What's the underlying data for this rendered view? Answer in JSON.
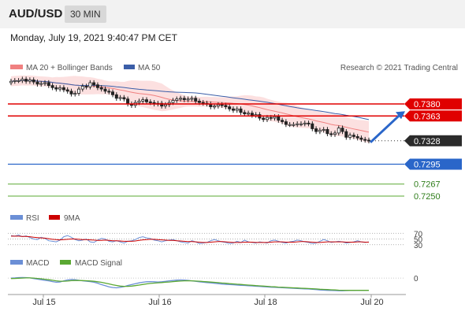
{
  "header": {
    "symbol": "AUD/USD",
    "timeframe": "30 MIN",
    "datetime": "Monday, July 19, 2021 9:40:47 PM CET"
  },
  "colors": {
    "ma20": "#f08080",
    "ma50": "#3b5ea8",
    "resistance": "#e00000",
    "support_1": "#2a66c9",
    "support_23": "#5aa832",
    "rsi": "#6b8fd6",
    "rsi_ma": "#cc0000",
    "macd": "#6b8fd6",
    "macd_signal": "#5aa832",
    "candle_up": "#ffffff",
    "candle_down": "#222222"
  },
  "chart_data": [
    {
      "type": "candlestick",
      "title": "Price",
      "legend": [
        {
          "label": "MA 20 + Bollinger Bands",
          "color": "#f08080"
        },
        {
          "label": "MA 50",
          "color": "#3b5ea8"
        }
      ],
      "credit": "Research © 2021 Trading Central",
      "x_labels": [
        "Jul 15",
        "Jul 16",
        "Jul 18",
        "Jul 20"
      ],
      "ylim": [
        0.724,
        0.742
      ],
      "close": [
        0.7412,
        0.7413,
        0.7413,
        0.7415,
        0.7412,
        0.7414,
        0.7411,
        0.7408,
        0.7409,
        0.741,
        0.7406,
        0.7403,
        0.7401,
        0.7403,
        0.74,
        0.7398,
        0.7394,
        0.7395,
        0.7401,
        0.7405,
        0.7404,
        0.741,
        0.7407,
        0.7403,
        0.7401,
        0.7398,
        0.7397,
        0.7393,
        0.7388,
        0.7389,
        0.7387,
        0.738,
        0.7378,
        0.7382,
        0.7384,
        0.7386,
        0.7383,
        0.7382,
        0.738,
        0.7381,
        0.7377,
        0.7379,
        0.7382,
        0.7385,
        0.7387,
        0.7388,
        0.7386,
        0.7387,
        0.7388,
        0.7384,
        0.7382,
        0.7381,
        0.738,
        0.7376,
        0.7377,
        0.7379,
        0.7378,
        0.7376,
        0.7373,
        0.7371,
        0.7373,
        0.7368,
        0.7366,
        0.7367,
        0.7364,
        0.7365,
        0.736,
        0.7358,
        0.7361,
        0.736,
        0.7362,
        0.7357,
        0.7355,
        0.7351,
        0.7351,
        0.7351,
        0.7352,
        0.7352,
        0.7353,
        0.7352,
        0.7345,
        0.7341,
        0.7343,
        0.7344,
        0.7338,
        0.7337,
        0.7339,
        0.7346,
        0.7341,
        0.7333,
        0.7336,
        0.7334,
        0.7332,
        0.733,
        0.7329,
        0.7328
      ],
      "levels": [
        {
          "value": 0.738,
          "label": "0.7380",
          "kind": "resistance"
        },
        {
          "value": 0.7363,
          "label": "0.7363",
          "kind": "resistance"
        },
        {
          "value": 0.7328,
          "label": "0.7328",
          "kind": "last"
        },
        {
          "value": 0.7295,
          "label": "0.7295",
          "kind": "support"
        },
        {
          "value": 0.7267,
          "label": "0.7267",
          "kind": "support"
        },
        {
          "value": 0.725,
          "label": "0.7250",
          "kind": "support"
        }
      ],
      "annotations": [
        {
          "type": "arrow",
          "from": 0.7328,
          "to": 0.7363,
          "direction": "up"
        }
      ]
    },
    {
      "type": "line",
      "title": "RSI",
      "legend": [
        {
          "label": "RSI",
          "color": "#6b8fd6"
        },
        {
          "label": "9MA",
          "color": "#cc0000"
        }
      ],
      "ylim": [
        10,
        90
      ],
      "reference_lines": [
        70,
        50,
        30
      ],
      "tick_labels": [
        "70",
        "50",
        "30"
      ],
      "series": [
        {
          "name": "RSI",
          "values": [
            62,
            60,
            64,
            58,
            61,
            55,
            50,
            48,
            56,
            52,
            44,
            42,
            40,
            46,
            58,
            62,
            56,
            48,
            44,
            46,
            50,
            40,
            38,
            46,
            52,
            50,
            42,
            40,
            44,
            40,
            36,
            42,
            44,
            48,
            55,
            58,
            54,
            52,
            46,
            44,
            40,
            44,
            46,
            48,
            44,
            40,
            38,
            36,
            44,
            40,
            34,
            36,
            38,
            44,
            48,
            44,
            40,
            38,
            34,
            36,
            42,
            38,
            46,
            40,
            38,
            36,
            40,
            38,
            36,
            44,
            46,
            42,
            38,
            36,
            40,
            42,
            46,
            44,
            40,
            38,
            34,
            36,
            42,
            48,
            44,
            38,
            40,
            42,
            40,
            36,
            38,
            40,
            44,
            40,
            38,
            40
          ]
        },
        {
          "name": "9MA",
          "values": [
            60,
            60,
            60,
            59,
            59,
            58,
            56,
            55,
            54,
            53,
            51,
            49,
            48,
            47,
            48,
            49,
            50,
            50,
            49,
            48,
            48,
            47,
            46,
            45,
            45,
            46,
            45,
            44,
            44,
            43,
            42,
            42,
            42,
            43,
            45,
            47,
            48,
            49,
            49,
            48,
            47,
            46,
            45,
            45,
            44,
            43,
            42,
            41,
            41,
            40,
            39,
            38,
            38,
            39,
            40,
            41,
            41,
            40,
            39,
            38,
            38,
            38,
            39,
            39,
            39,
            38,
            38,
            38,
            38,
            39,
            40,
            40,
            40,
            39,
            39,
            39,
            40,
            41,
            41,
            40,
            39,
            38,
            38,
            39,
            40,
            40,
            40,
            40,
            40,
            39,
            39,
            39,
            40,
            40,
            39,
            39
          ]
        }
      ]
    },
    {
      "type": "line",
      "title": "MACD",
      "legend": [
        {
          "label": "MACD",
          "color": "#6b8fd6"
        },
        {
          "label": "MACD Signal",
          "color": "#5aa832"
        }
      ],
      "ylim": [
        -1.6,
        0.6
      ],
      "reference_lines": [
        0
      ],
      "tick_labels": [
        "0"
      ],
      "series": [
        {
          "name": "MACD",
          "values": [
            0.0,
            0.02,
            0.05,
            0.06,
            0.05,
            0.02,
            -0.05,
            -0.12,
            -0.18,
            -0.25,
            -0.3,
            -0.38,
            -0.45,
            -0.42,
            -0.3,
            -0.2,
            -0.15,
            -0.18,
            -0.24,
            -0.3,
            -0.34,
            -0.38,
            -0.45,
            -0.55,
            -0.7,
            -0.82,
            -0.95,
            -1.02,
            -1.05,
            -1.0,
            -0.92,
            -0.8,
            -0.7,
            -0.6,
            -0.52,
            -0.45,
            -0.4,
            -0.38,
            -0.4,
            -0.42,
            -0.4,
            -0.36,
            -0.3,
            -0.26,
            -0.22,
            -0.2,
            -0.22,
            -0.25,
            -0.3,
            -0.35,
            -0.4,
            -0.45,
            -0.48,
            -0.52,
            -0.56,
            -0.6,
            -0.64,
            -0.68,
            -0.7,
            -0.72,
            -0.75,
            -0.78,
            -0.8,
            -0.82,
            -0.85,
            -0.88,
            -0.9,
            -0.93,
            -0.96,
            -0.98,
            -1.0,
            -1.02,
            -1.04,
            -1.06,
            -1.08,
            -1.1,
            -1.12,
            -1.14,
            -1.16,
            -1.18,
            -1.2,
            -1.24,
            -1.28,
            -1.3,
            -1.32,
            -1.34,
            -1.35,
            -1.36,
            -1.36,
            -1.35,
            -1.34,
            -1.33,
            -1.32,
            -1.32,
            -1.32,
            -1.31
          ]
        },
        {
          "name": "MACD Signal",
          "values": [
            -0.05,
            -0.04,
            -0.02,
            0.0,
            0.02,
            0.02,
            0.0,
            -0.04,
            -0.08,
            -0.13,
            -0.18,
            -0.24,
            -0.3,
            -0.34,
            -0.34,
            -0.32,
            -0.28,
            -0.26,
            -0.26,
            -0.27,
            -0.29,
            -0.31,
            -0.35,
            -0.4,
            -0.46,
            -0.54,
            -0.63,
            -0.72,
            -0.8,
            -0.86,
            -0.89,
            -0.89,
            -0.86,
            -0.81,
            -0.75,
            -0.69,
            -0.63,
            -0.58,
            -0.54,
            -0.51,
            -0.48,
            -0.45,
            -0.42,
            -0.38,
            -0.35,
            -0.32,
            -0.3,
            -0.29,
            -0.3,
            -0.32,
            -0.34,
            -0.37,
            -0.4,
            -0.43,
            -0.46,
            -0.49,
            -0.53,
            -0.56,
            -0.6,
            -0.63,
            -0.66,
            -0.69,
            -0.72,
            -0.75,
            -0.78,
            -0.81,
            -0.84,
            -0.86,
            -0.89,
            -0.92,
            -0.94,
            -0.97,
            -0.99,
            -1.01,
            -1.03,
            -1.05,
            -1.07,
            -1.09,
            -1.11,
            -1.13,
            -1.15,
            -1.17,
            -1.2,
            -1.22,
            -1.24,
            -1.26,
            -1.28,
            -1.3,
            -1.31,
            -1.32,
            -1.32,
            -1.32,
            -1.32,
            -1.32,
            -1.32,
            -1.32
          ]
        }
      ]
    }
  ]
}
